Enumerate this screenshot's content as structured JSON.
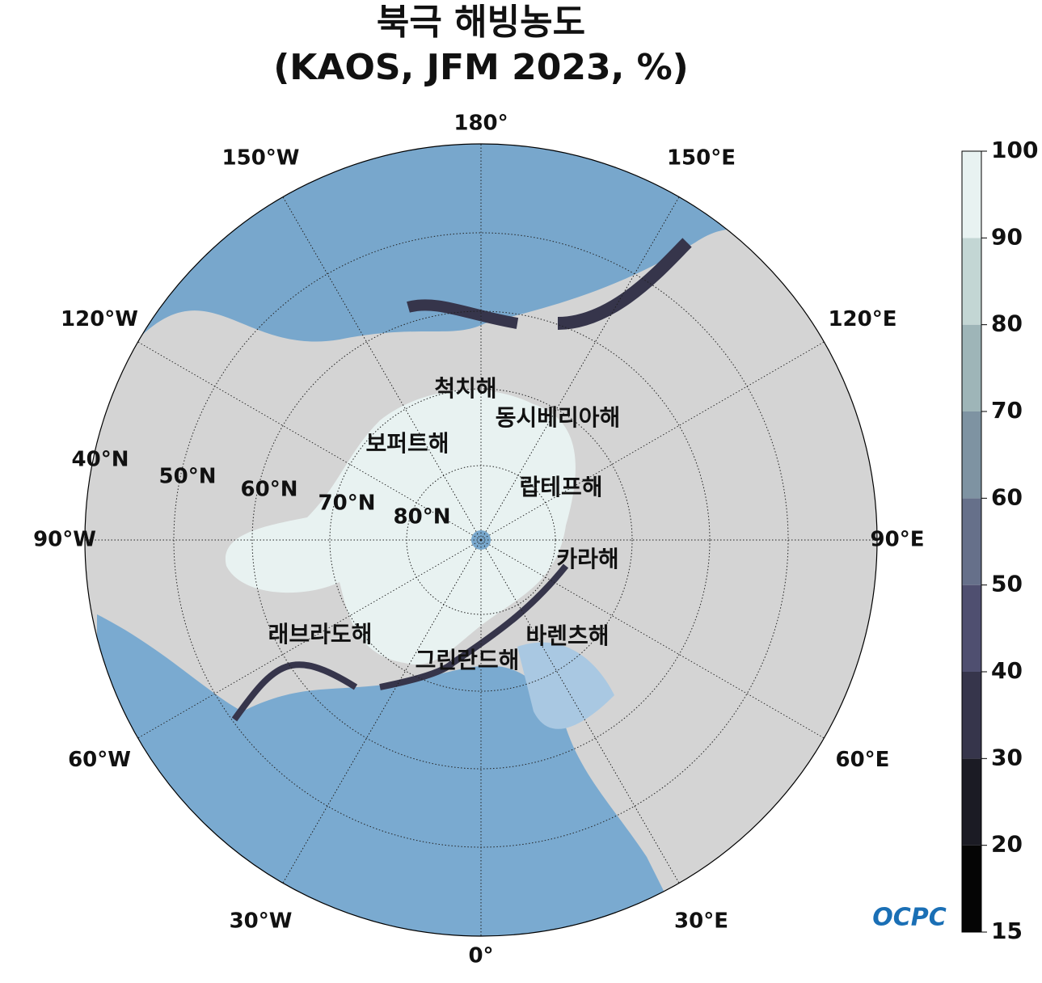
{
  "title": [
    "북극 해빙농도",
    "(KAOS, JFM 2023, %)"
  ],
  "map": {
    "longitude_labels": [
      "0°",
      "30°E",
      "60°E",
      "90°E",
      "120°E",
      "150°E",
      "180°",
      "150°W",
      "120°W",
      "90°W",
      "60°W",
      "30°W"
    ],
    "latitude_labels": [
      "80°N",
      "70°N",
      "60°N",
      "50°N",
      "40°N"
    ],
    "sea_names": [
      "척치해",
      "동시베리아해",
      "보퍼트해",
      "랍테프해",
      "카라해",
      "바렌츠해",
      "래브라도해",
      "그린란드해"
    ]
  },
  "colorbar": {
    "ticks": [
      15,
      20,
      30,
      40,
      50,
      60,
      70,
      80,
      90,
      100
    ],
    "colors": [
      "#050505",
      "#1b1b24",
      "#36354b",
      "#4f4f70",
      "#66708a",
      "#7e93a2",
      "#9eb5b8",
      "#c3d6d4",
      "#e8f2f1"
    ]
  },
  "logo": "OCPC"
}
